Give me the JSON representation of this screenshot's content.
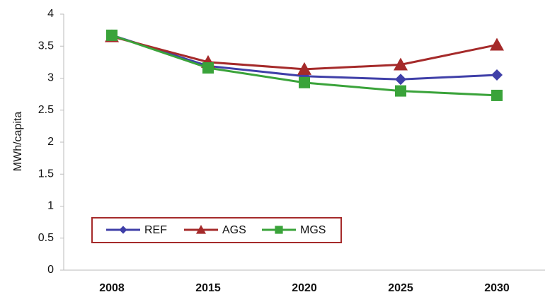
{
  "chart_data": {
    "type": "line",
    "y_label": "MWh/capita",
    "categories": [
      "2008",
      "2015",
      "2020",
      "2025",
      "2030"
    ],
    "series": [
      {
        "name": "REF",
        "color": "#3f3fa8",
        "marker": "diamond",
        "values": [
          3.67,
          3.19,
          3.03,
          2.98,
          3.05
        ]
      },
      {
        "name": "AGS",
        "color": "#a52a2a",
        "marker": "triangle",
        "values": [
          3.65,
          3.25,
          3.14,
          3.21,
          3.52
        ]
      },
      {
        "name": "MGS",
        "color": "#3aa33a",
        "marker": "square",
        "values": [
          3.67,
          3.16,
          2.93,
          2.8,
          2.73
        ]
      }
    ],
    "ylim": [
      0,
      4
    ],
    "yticks": [
      0,
      0.5,
      1,
      1.5,
      2,
      2.5,
      3,
      3.5,
      4
    ],
    "grid": false
  }
}
